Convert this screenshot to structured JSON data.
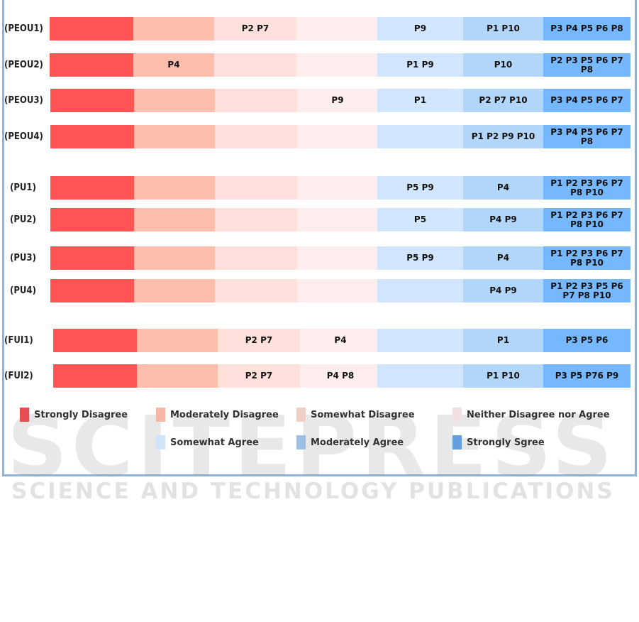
{
  "chart_data": {
    "type": "table",
    "columns": [
      "Strongly Disagree",
      "Moderately Disagree",
      "Somewhat Disagree",
      "Neither Disagree nor Agree",
      "Somewhat Agree",
      "Moderately Agree",
      "Strongly Sgree"
    ],
    "colors": [
      "#ff5555",
      "#ffbeac",
      "#ffe0da",
      "#ffedee",
      "#d1e6fe",
      "#b2d5fa",
      "#75b8ff"
    ],
    "legend_colors": [
      "#e84d52",
      "#f7b6a6",
      "#f0cfc6",
      "#f3e0e2",
      "#cfe3fb",
      "#9cbfe3",
      "#649fe0"
    ],
    "rows": [
      {
        "label": "(PEOU1)",
        "cells": [
          "",
          "",
          "P2 P7",
          "",
          "P9",
          "P1  P10",
          "P3  P4  P5 P6  P8"
        ]
      },
      {
        "label": "(PEOU2)",
        "cells": [
          "",
          "P4",
          "",
          "",
          "P1 P9",
          "P10",
          "P2 P3 P5 P6 P7 P8"
        ]
      },
      {
        "label": "(PEOU3)",
        "cells": [
          "",
          "",
          "",
          "P9",
          "P1",
          "P2 P7 P10",
          "P3 P4 P5 P6 P7"
        ]
      },
      {
        "label": "(PEOU4)",
        "cells": [
          "",
          "",
          "",
          "",
          "",
          "P1 P2 P9 P10",
          "P3 P4 P5 P6 P7 P8"
        ]
      },
      {
        "label": "(PU1)",
        "cells": [
          "",
          "",
          "",
          "",
          "P5 P9",
          "P4",
          "P1 P2 P3 P6 P7 P8 P10"
        ]
      },
      {
        "label": "(PU2)",
        "cells": [
          "",
          "",
          "",
          "",
          "P5",
          "P4 P9",
          "P1 P2 P3 P6 P7 P8 P10"
        ]
      },
      {
        "label": "(PU3)",
        "cells": [
          "",
          "",
          "",
          "",
          "P5 P9",
          "P4",
          "P1 P2 P3 P6 P7 P8 P10"
        ]
      },
      {
        "label": "(PU4)",
        "cells": [
          "",
          "",
          "",
          "",
          "",
          "P4 P9",
          "P1 P2 P3 P5 P6 P7 P8 P10"
        ]
      },
      {
        "label": "(FUI1)",
        "cells": [
          "",
          "",
          "P2 P7",
          "P4",
          "",
          "P1",
          "P3 P5 P6"
        ]
      },
      {
        "label": "(FUI2)",
        "cells": [
          "",
          "",
          "P2 P7",
          "P4 P8",
          "",
          "P1 P10",
          "P3  P5  P76 P9"
        ]
      }
    ],
    "legend_placement": "bottom"
  },
  "watermark": {
    "line1": "SCITEPRESS",
    "line2": "SCIENCE AND TECHNOLOGY PUBLICATIONS"
  }
}
